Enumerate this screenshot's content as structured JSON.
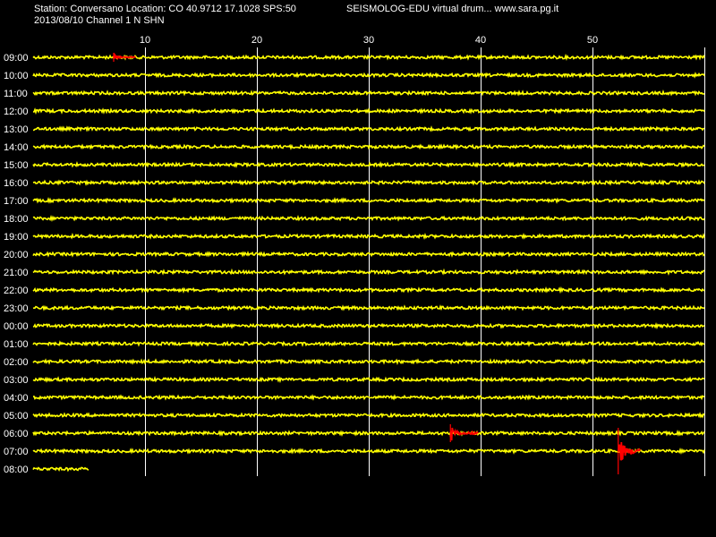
{
  "header": {
    "station_line": "Station: Conversano Location: CO 40.9712 17.1028 SPS:50",
    "app_line": "SEISMOLOG-EDU virtual drum... www.sara.pg.it",
    "date_line": "2013/08/10  Channel 1 N SHN"
  },
  "drum": {
    "minute_ticks": [
      10,
      20,
      30,
      40,
      50
    ],
    "hours": [
      "09:00",
      "10:00",
      "11:00",
      "12:00",
      "13:00",
      "14:00",
      "15:00",
      "16:00",
      "17:00",
      "18:00",
      "19:00",
      "20:00",
      "21:00",
      "22:00",
      "23:00",
      "00:00",
      "01:00",
      "02:00",
      "03:00",
      "04:00",
      "05:00",
      "06:00",
      "07:00",
      "08:00"
    ],
    "last_trace_minutes": 5,
    "events": [
      {
        "hour": "09:00",
        "start_minute": 7.2,
        "end_minute": 9.2,
        "peak_amplitude": "small"
      },
      {
        "hour": "06:00",
        "start_minute": 37.3,
        "end_minute": 39.8,
        "peak_amplitude": "medium"
      },
      {
        "hour": "07:00",
        "start_minute": 52.3,
        "end_minute": 54.3,
        "peak_amplitude": "large"
      }
    ]
  },
  "colors": {
    "background": "#000000",
    "trace": "#ffff00",
    "event": "#ff0000",
    "grid": "#ffffff",
    "text": "#ffffff"
  }
}
